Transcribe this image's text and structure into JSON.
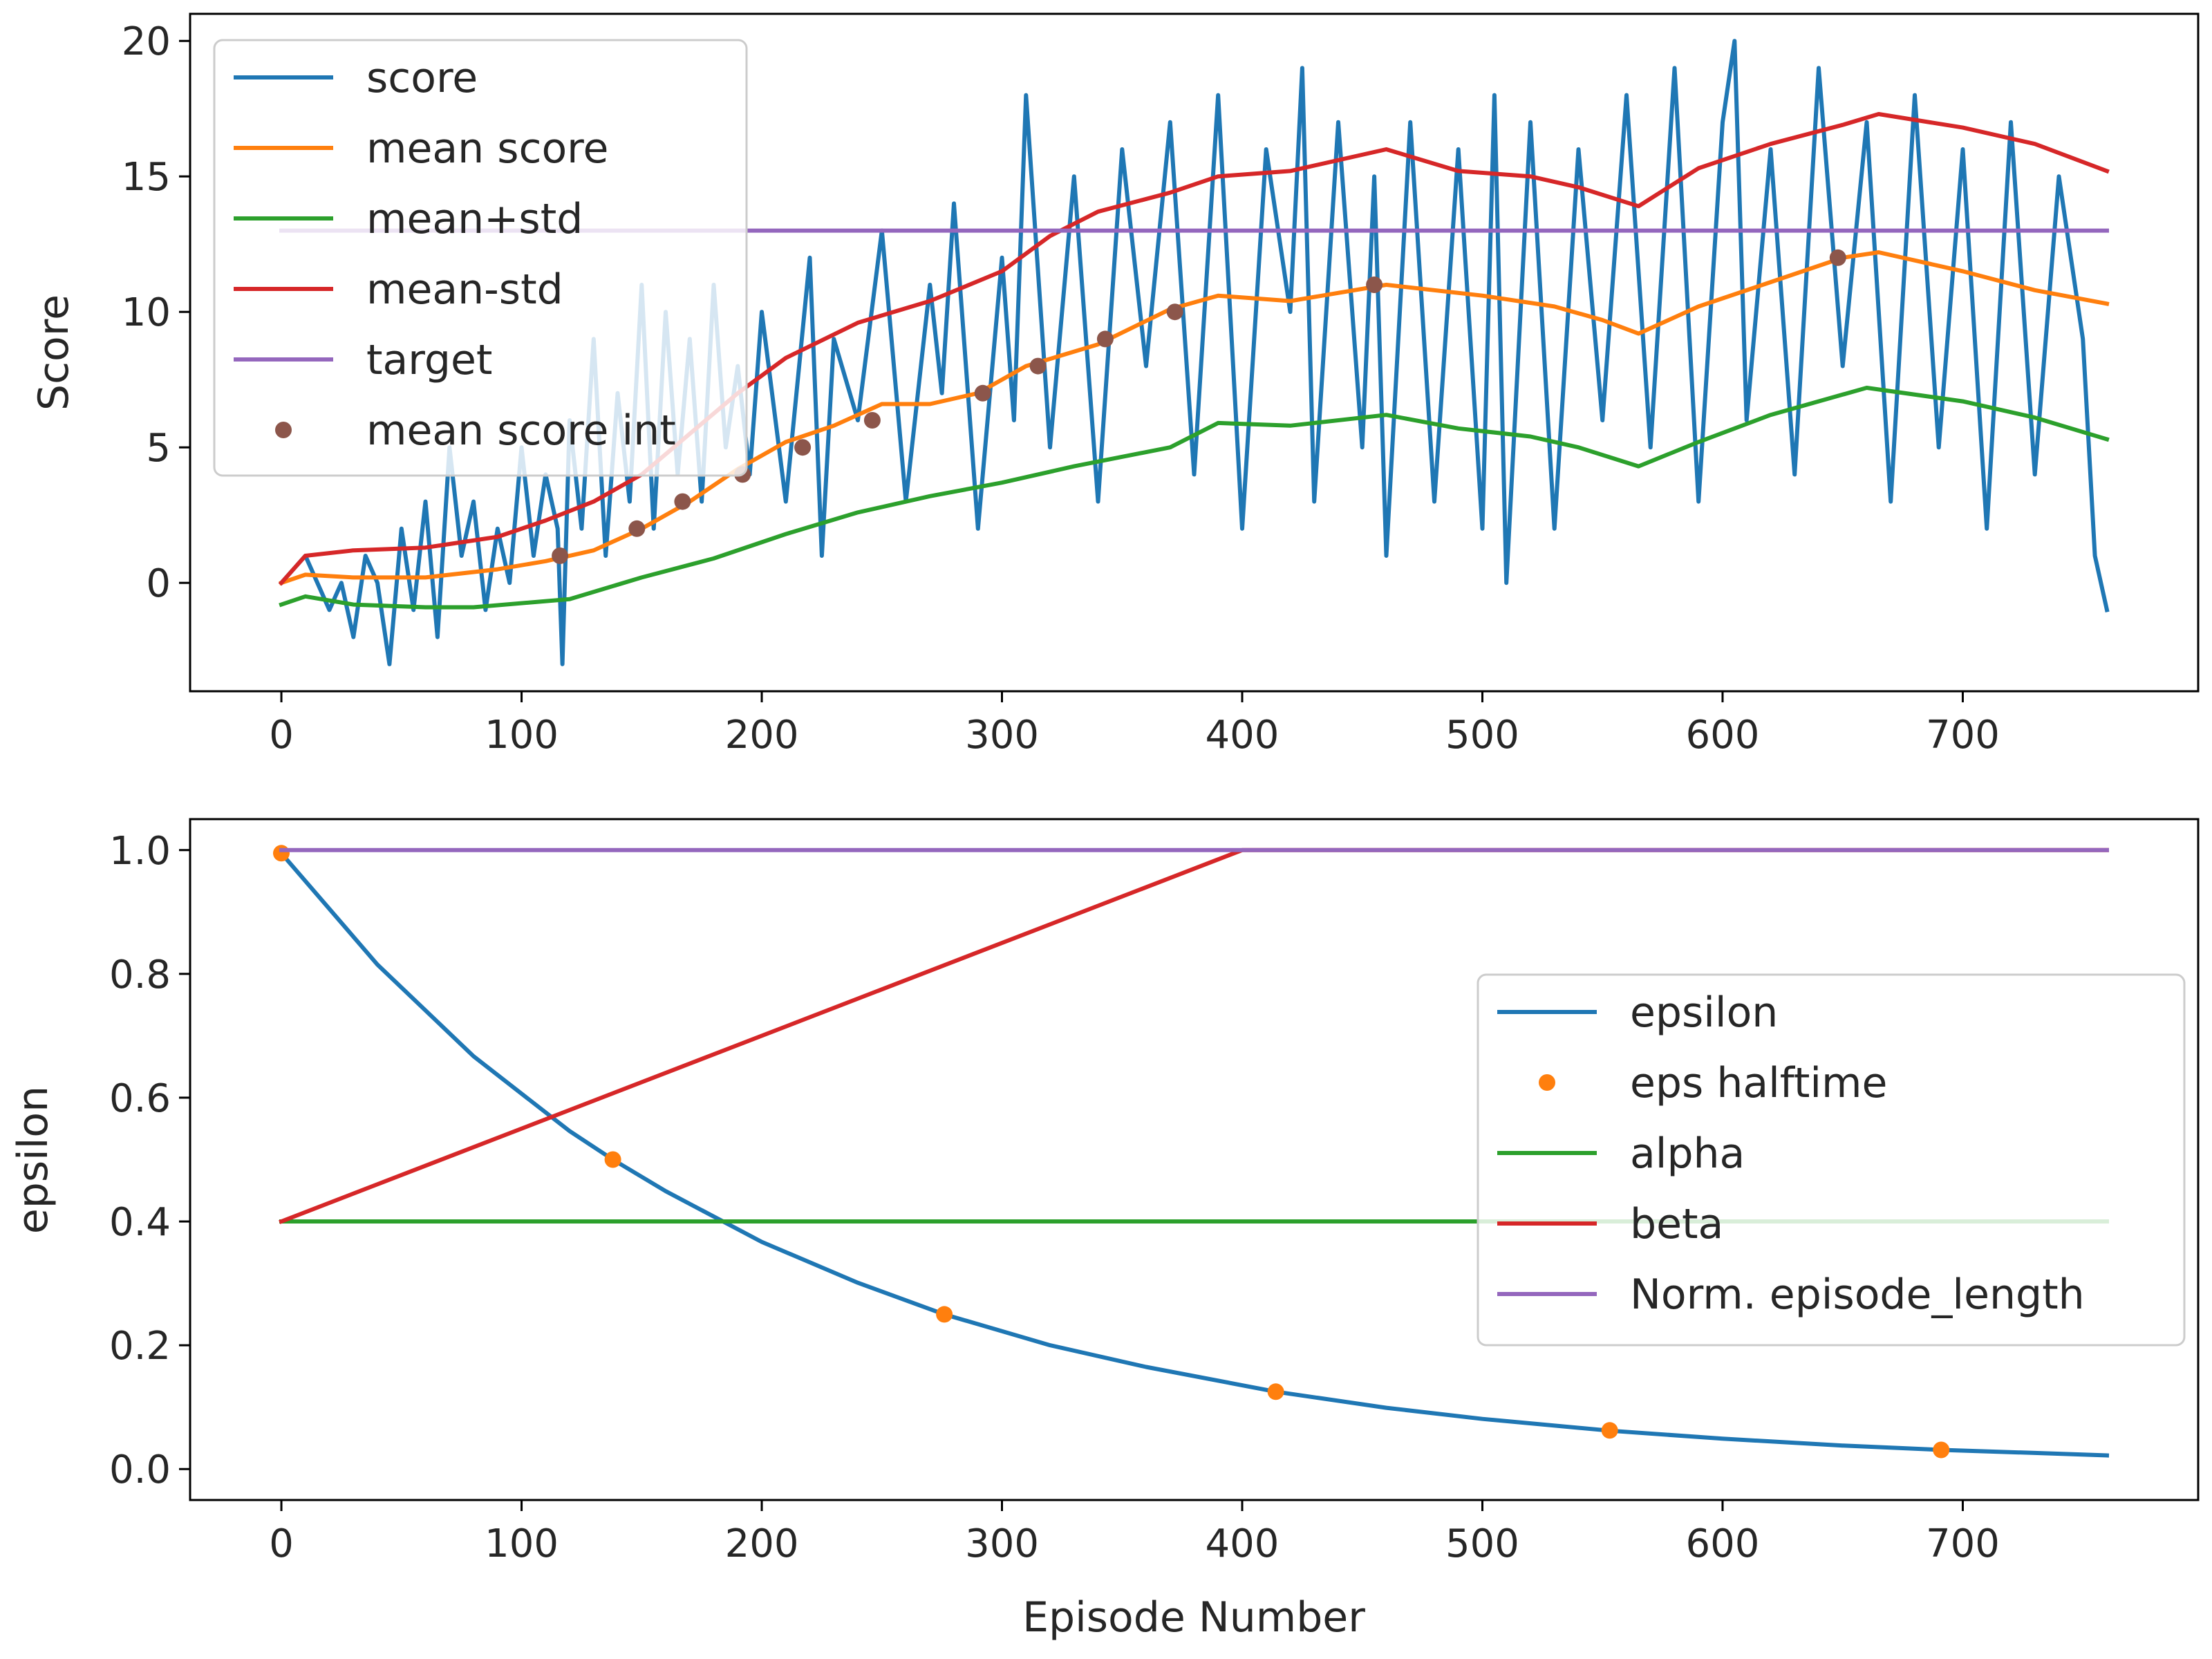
{
  "chart_data": [
    {
      "type": "line",
      "xlabel": "",
      "ylabel": "Score",
      "xlim": [
        -38,
        798
      ],
      "ylim": [
        -4,
        21
      ],
      "xticks": [
        0,
        100,
        200,
        300,
        400,
        500,
        600,
        700
      ],
      "yticks": [
        0,
        5,
        10,
        15,
        20
      ],
      "legend_position": "upper-left",
      "series": [
        {
          "name": "score",
          "color": "#1f77b4",
          "kind": "line",
          "x": [
            0,
            10,
            20,
            25,
            30,
            35,
            40,
            45,
            50,
            55,
            60,
            65,
            70,
            75,
            80,
            85,
            90,
            95,
            100,
            105,
            110,
            115,
            117,
            120,
            125,
            130,
            135,
            140,
            145,
            150,
            155,
            160,
            165,
            170,
            175,
            180,
            185,
            190,
            195,
            200,
            210,
            220,
            225,
            230,
            240,
            250,
            260,
            270,
            275,
            280,
            290,
            300,
            305,
            310,
            320,
            330,
            340,
            350,
            360,
            370,
            380,
            390,
            400,
            410,
            420,
            425,
            430,
            440,
            450,
            455,
            460,
            470,
            480,
            490,
            500,
            505,
            510,
            520,
            530,
            540,
            550,
            560,
            570,
            580,
            590,
            600,
            605,
            610,
            620,
            630,
            640,
            650,
            660,
            670,
            680,
            690,
            700,
            710,
            720,
            730,
            740,
            750,
            755,
            760
          ],
          "y": [
            0,
            1,
            -1,
            0,
            -2,
            1,
            0,
            -3,
            2,
            -1,
            3,
            -2,
            5,
            1,
            3,
            -1,
            2,
            0,
            5,
            1,
            4,
            2,
            -3,
            6,
            2,
            9,
            1,
            7,
            3,
            11,
            2,
            10,
            4,
            9,
            3,
            11,
            5,
            8,
            4,
            10,
            3,
            12,
            1,
            9,
            6,
            13,
            3,
            11,
            7,
            14,
            2,
            12,
            6,
            18,
            5,
            15,
            3,
            16,
            8,
            17,
            4,
            18,
            2,
            16,
            10,
            19,
            3,
            17,
            5,
            15,
            1,
            17,
            3,
            16,
            2,
            18,
            0,
            17,
            2,
            16,
            6,
            18,
            5,
            19,
            3,
            17,
            20,
            6,
            16,
            4,
            19,
            8,
            17,
            3,
            18,
            5,
            16,
            2,
            17,
            4,
            15,
            9,
            1,
            -1
          ]
        },
        {
          "name": "mean score",
          "color": "#ff7f0e",
          "kind": "line",
          "x": [
            0,
            10,
            30,
            60,
            90,
            110,
            130,
            150,
            170,
            190,
            210,
            230,
            250,
            270,
            290,
            310,
            340,
            370,
            390,
            420,
            460,
            500,
            530,
            550,
            565,
            590,
            620,
            650,
            665,
            700,
            730,
            760
          ],
          "y": [
            0,
            0.3,
            0.2,
            0.2,
            0.5,
            0.8,
            1.2,
            2.0,
            3.0,
            4.2,
            5.2,
            5.8,
            6.6,
            6.6,
            7.0,
            8.0,
            8.8,
            10.1,
            10.6,
            10.4,
            11.0,
            10.6,
            10.2,
            9.7,
            9.2,
            10.2,
            11.1,
            12.0,
            12.2,
            11.5,
            10.8,
            10.3
          ]
        },
        {
          "name": "mean+std",
          "color": "#2ca02c",
          "kind": "line",
          "x": [
            0,
            10,
            30,
            60,
            80,
            120,
            150,
            180,
            210,
            240,
            270,
            300,
            330,
            370,
            390,
            420,
            460,
            490,
            520,
            540,
            565,
            590,
            620,
            660,
            700,
            730,
            760
          ],
          "y": [
            -0.8,
            -0.5,
            -0.8,
            -0.9,
            -0.9,
            -0.6,
            0.2,
            0.9,
            1.8,
            2.6,
            3.2,
            3.7,
            4.3,
            5.0,
            5.9,
            5.8,
            6.2,
            5.7,
            5.4,
            5.0,
            4.3,
            5.2,
            6.2,
            7.2,
            6.7,
            6.1,
            5.3
          ]
        },
        {
          "name": "mean-std",
          "color": "#d62728",
          "kind": "line",
          "x": [
            0,
            10,
            30,
            60,
            90,
            110,
            130,
            150,
            170,
            190,
            210,
            240,
            270,
            300,
            320,
            340,
            370,
            390,
            420,
            460,
            490,
            520,
            540,
            565,
            590,
            620,
            650,
            665,
            700,
            730,
            760
          ],
          "y": [
            0,
            1.0,
            1.2,
            1.3,
            1.7,
            2.3,
            3.0,
            4.0,
            5.5,
            7.0,
            8.3,
            9.6,
            10.4,
            11.5,
            12.8,
            13.7,
            14.4,
            15.0,
            15.2,
            16.0,
            15.2,
            15.0,
            14.6,
            13.9,
            15.3,
            16.2,
            16.9,
            17.3,
            16.8,
            16.2,
            15.2
          ]
        },
        {
          "name": "target",
          "color": "#9467bd",
          "kind": "line",
          "x": [
            0,
            760
          ],
          "y": [
            13,
            13
          ]
        },
        {
          "name": "mean score int",
          "color": "#8c564b",
          "kind": "points",
          "x": [
            116,
            148,
            167,
            192,
            217,
            246,
            292,
            315,
            343,
            372,
            455,
            648
          ],
          "y": [
            1,
            2,
            3,
            4,
            5,
            6,
            7,
            8,
            9,
            10,
            11,
            12
          ]
        }
      ]
    },
    {
      "type": "line",
      "xlabel": "Episode Number",
      "ylabel": "epsilon",
      "xlim": [
        -38,
        798
      ],
      "ylim": [
        -0.05,
        1.05
      ],
      "xticks": [
        0,
        100,
        200,
        300,
        400,
        500,
        600,
        700
      ],
      "yticks": [
        0.0,
        0.2,
        0.4,
        0.6,
        0.8,
        1.0
      ],
      "legend_position": "center-right",
      "series": [
        {
          "name": "epsilon",
          "color": "#1f77b4",
          "kind": "line",
          "x": [
            0,
            40,
            80,
            120,
            138,
            160,
            200,
            240,
            276,
            320,
            360,
            414,
            460,
            500,
            553,
            600,
            650,
            691,
            730,
            760
          ],
          "y": [
            0.995,
            0.815,
            0.667,
            0.546,
            0.5,
            0.449,
            0.367,
            0.301,
            0.25,
            0.2,
            0.165,
            0.125,
            0.099,
            0.081,
            0.062,
            0.049,
            0.038,
            0.031,
            0.026,
            0.022
          ]
        },
        {
          "name": "eps halftime",
          "color": "#ff7f0e",
          "kind": "points",
          "x": [
            0,
            138,
            276,
            414,
            553,
            691
          ],
          "y": [
            0.995,
            0.5,
            0.25,
            0.125,
            0.0625,
            0.031
          ]
        },
        {
          "name": "alpha",
          "color": "#2ca02c",
          "kind": "line",
          "x": [
            0,
            760
          ],
          "y": [
            0.4,
            0.4
          ]
        },
        {
          "name": "beta",
          "color": "#d62728",
          "kind": "line",
          "x": [
            0,
            400,
            760
          ],
          "y": [
            0.4,
            1.0,
            1.0
          ]
        },
        {
          "name": "Norm. episode_length",
          "color": "#9467bd",
          "kind": "line",
          "x": [
            0,
            760
          ],
          "y": [
            1.0,
            1.0
          ]
        }
      ]
    }
  ]
}
